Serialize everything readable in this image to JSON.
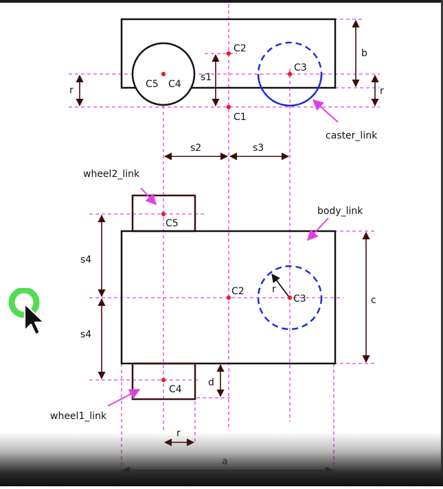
{
  "colors": {
    "outline": "#111111",
    "guide": "#e040e0",
    "dimension": "#3d0c0c",
    "point": "#e8202a",
    "caster": "#1a2fd6",
    "cursor_ring": "#3fd83f"
  },
  "side_view": {
    "point_c2": "C2",
    "point_c3": "C3",
    "point_c1": "C1",
    "label_c5": "C5",
    "label_c4": "C4",
    "dim_b": "b",
    "dim_r_left": "r",
    "dim_r_right": "r",
    "dim_s1": "s1",
    "dim_s2": "s2",
    "dim_s3": "s3",
    "caster_link": "caster_link"
  },
  "top_view": {
    "wheel2_link": "wheel2_link",
    "wheel1_link": "wheel1_link",
    "body_link": "body_link",
    "point_c5": "C5",
    "point_c2": "C2",
    "point_c3": "C3",
    "point_c4": "C4",
    "dim_r_caster": "r",
    "dim_c": "c",
    "dim_s4_top": "s4",
    "dim_s4_bottom": "s4",
    "dim_d": "d",
    "dim_r_wheel": "r",
    "dim_a": "a"
  },
  "icons": {
    "cursor": "mouse-pointer-icon"
  }
}
